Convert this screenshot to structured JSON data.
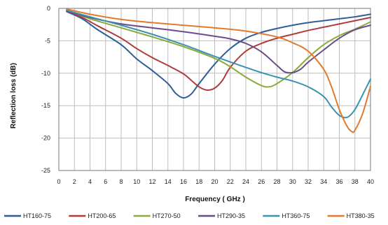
{
  "chart_data": {
    "type": "line",
    "title": "",
    "xlabel": "Frequency ( GHz )",
    "ylabel": "Reflection loss (dB)",
    "xlim": [
      0,
      40
    ],
    "ylim": [
      -25,
      0
    ],
    "x_ticks": [
      0,
      2,
      4,
      6,
      8,
      10,
      12,
      14,
      16,
      18,
      20,
      22,
      24,
      26,
      28,
      30,
      32,
      34,
      36,
      38,
      40
    ],
    "y_ticks": [
      0,
      -5,
      -10,
      -15,
      -20,
      -25
    ],
    "grid": true,
    "legend_position": "bottom",
    "series": [
      {
        "name": "HT160-75",
        "color": "#2e5d9a",
        "points": [
          [
            1,
            -0.5
          ],
          [
            3,
            -1.6
          ],
          [
            5,
            -3.3
          ],
          [
            8,
            -5.6
          ],
          [
            10,
            -7.8
          ],
          [
            12,
            -9.6
          ],
          [
            14,
            -11.6
          ],
          [
            15,
            -13.1
          ],
          [
            16,
            -13.8
          ],
          [
            17,
            -13.2
          ],
          [
            18,
            -11.6
          ],
          [
            20,
            -8.6
          ],
          [
            22,
            -6.2
          ],
          [
            24,
            -4.6
          ],
          [
            26,
            -3.7
          ],
          [
            28,
            -3.1
          ],
          [
            30,
            -2.6
          ],
          [
            32,
            -2.2
          ],
          [
            34,
            -1.9
          ],
          [
            36,
            -1.6
          ],
          [
            38,
            -1.3
          ],
          [
            40,
            -0.9
          ]
        ]
      },
      {
        "name": "HT200-65",
        "color": "#b03a3a",
        "points": [
          [
            1,
            -0.4
          ],
          [
            3,
            -1.4
          ],
          [
            5,
            -2.7
          ],
          [
            8,
            -4.6
          ],
          [
            10,
            -6.2
          ],
          [
            12,
            -7.6
          ],
          [
            14,
            -8.8
          ],
          [
            16,
            -10.1
          ],
          [
            17,
            -11.1
          ],
          [
            18,
            -12.1
          ],
          [
            19,
            -12.6
          ],
          [
            20,
            -12.3
          ],
          [
            21,
            -11.1
          ],
          [
            22,
            -9.1
          ],
          [
            24,
            -6.6
          ],
          [
            26,
            -5.4
          ],
          [
            28,
            -4.6
          ],
          [
            30,
            -4.0
          ],
          [
            32,
            -3.4
          ],
          [
            34,
            -2.9
          ],
          [
            36,
            -2.4
          ],
          [
            38,
            -1.9
          ],
          [
            40,
            -1.4
          ]
        ]
      },
      {
        "name": "HT270-50",
        "color": "#8aaa3c",
        "points": [
          [
            1,
            -0.3
          ],
          [
            4,
            -1.6
          ],
          [
            8,
            -3.0
          ],
          [
            12,
            -4.4
          ],
          [
            16,
            -5.9
          ],
          [
            20,
            -7.7
          ],
          [
            22,
            -9.0
          ],
          [
            24,
            -10.6
          ],
          [
            26,
            -11.9
          ],
          [
            27,
            -12.1
          ],
          [
            28,
            -11.6
          ],
          [
            30,
            -9.9
          ],
          [
            32,
            -7.6
          ],
          [
            34,
            -5.6
          ],
          [
            36,
            -4.2
          ],
          [
            38,
            -3.2
          ],
          [
            40,
            -2.1
          ]
        ]
      },
      {
        "name": "HT290-35",
        "color": "#6a4c8c",
        "points": [
          [
            1,
            -0.4
          ],
          [
            4,
            -1.4
          ],
          [
            8,
            -2.4
          ],
          [
            12,
            -3.0
          ],
          [
            16,
            -3.6
          ],
          [
            20,
            -4.3
          ],
          [
            22,
            -4.7
          ],
          [
            24,
            -5.4
          ],
          [
            26,
            -6.7
          ],
          [
            28,
            -8.8
          ],
          [
            29,
            -9.8
          ],
          [
            30,
            -9.9
          ],
          [
            31,
            -9.4
          ],
          [
            32,
            -8.3
          ],
          [
            34,
            -6.4
          ],
          [
            36,
            -4.6
          ],
          [
            38,
            -3.3
          ],
          [
            40,
            -2.6
          ]
        ]
      },
      {
        "name": "HT360-75",
        "color": "#3a92b0",
        "points": [
          [
            1,
            -0.3
          ],
          [
            4,
            -1.3
          ],
          [
            8,
            -2.6
          ],
          [
            12,
            -4.0
          ],
          [
            16,
            -5.6
          ],
          [
            20,
            -7.4
          ],
          [
            24,
            -9.1
          ],
          [
            26,
            -9.9
          ],
          [
            28,
            -10.6
          ],
          [
            30,
            -11.2
          ],
          [
            32,
            -12.1
          ],
          [
            34,
            -13.6
          ],
          [
            35,
            -15.2
          ],
          [
            36,
            -16.5
          ],
          [
            37,
            -16.8
          ],
          [
            38,
            -15.6
          ],
          [
            39,
            -13.3
          ],
          [
            40,
            -10.9
          ]
        ]
      },
      {
        "name": "HT380-35",
        "color": "#e07b2e",
        "points": [
          [
            1,
            -0.1
          ],
          [
            4,
            -0.9
          ],
          [
            8,
            -1.7
          ],
          [
            12,
            -2.2
          ],
          [
            16,
            -2.6
          ],
          [
            20,
            -3.0
          ],
          [
            24,
            -3.5
          ],
          [
            28,
            -4.4
          ],
          [
            30,
            -5.3
          ],
          [
            32,
            -6.6
          ],
          [
            34,
            -9.4
          ],
          [
            35,
            -12.1
          ],
          [
            36,
            -15.6
          ],
          [
            37,
            -18.2
          ],
          [
            37.6,
            -19.0
          ],
          [
            38,
            -18.8
          ],
          [
            39,
            -16.2
          ],
          [
            40,
            -12.0
          ]
        ]
      }
    ]
  }
}
